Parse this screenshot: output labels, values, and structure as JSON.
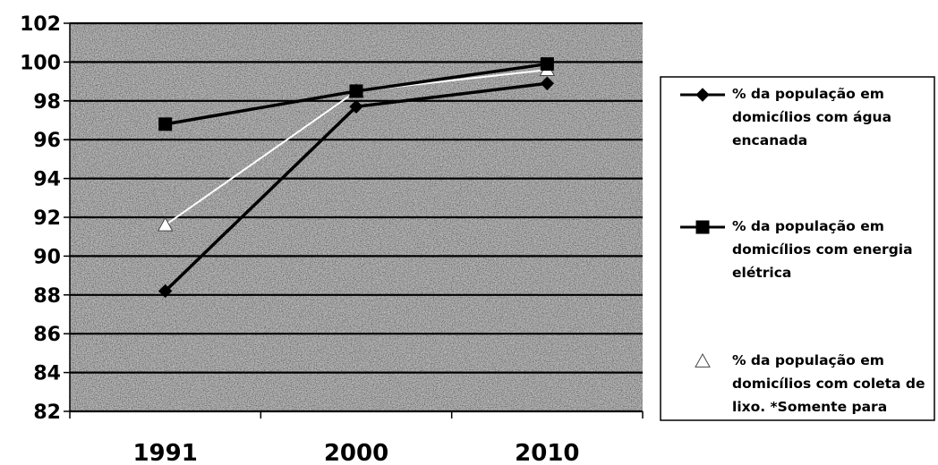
{
  "chart_data": {
    "type": "line",
    "categories": [
      "1991",
      "2000",
      "2010"
    ],
    "ylim": [
      82,
      102
    ],
    "yticks": [
      82,
      84,
      86,
      88,
      90,
      92,
      94,
      96,
      98,
      100,
      102
    ],
    "grid": true,
    "legend_position": "right",
    "series": [
      {
        "name": "% da população em domicílios com água encanada",
        "legend_lines": [
          "% da população em",
          "domicílios com água",
          "encanada"
        ],
        "marker": "diamond",
        "color": "#000000",
        "values": [
          88.2,
          97.7,
          98.9
        ]
      },
      {
        "name": "% da população em domicílios com energia elétrica",
        "legend_lines": [
          "% da população em",
          "domicílios com energia",
          "elétrica"
        ],
        "marker": "square",
        "color": "#000000",
        "values": [
          96.8,
          98.5,
          99.9
        ]
      },
      {
        "name": "% da população em domicílios com coleta de lixo. *Somente para",
        "legend_lines": [
          "% da população em",
          "domicílios com coleta de",
          "lixo. *Somente para"
        ],
        "marker": "triangle",
        "color": "#ffffff",
        "values": [
          91.6,
          98.5,
          99.6
        ]
      }
    ],
    "plot_background": "#a9a9a9"
  }
}
